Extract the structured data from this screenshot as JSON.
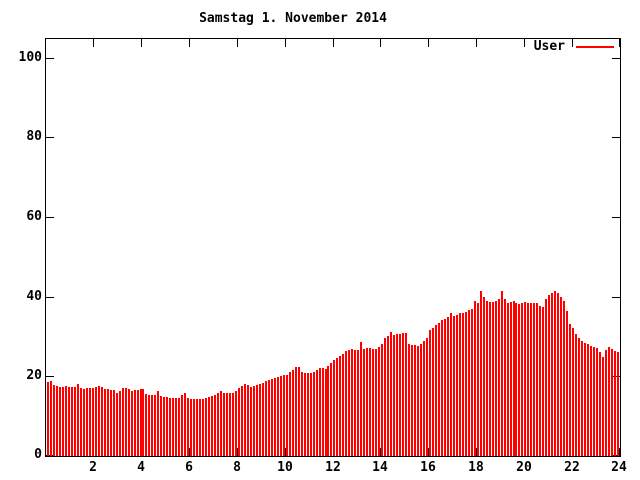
{
  "title": "Samstag 1. November 2014",
  "chart_data": {
    "type": "bar",
    "title": "Samstag 1. November 2014",
    "legend_label": "User",
    "legend_position": "top-right",
    "grid": false,
    "bar_color": "#ff0000",
    "axis_color": "#000000",
    "background_color": "#ffffff",
    "xlim": [
      0,
      24
    ],
    "ylim": [
      0,
      100
    ],
    "x_ticks": [
      2,
      4,
      6,
      8,
      10,
      12,
      14,
      16,
      18,
      20,
      22,
      24
    ],
    "y_ticks": [
      0,
      20,
      40,
      60,
      80,
      100
    ],
    "x_start_hour": 0,
    "x_step_hours": 0.125,
    "series": [
      {
        "name": "User",
        "values": [
          18.5,
          18.7,
          17.8,
          17.5,
          17.3,
          17.4,
          17.5,
          17.3,
          17.2,
          17.4,
          18.1,
          17.0,
          16.9,
          17.0,
          17.1,
          17.0,
          17.3,
          17.5,
          17.2,
          16.9,
          16.8,
          16.6,
          16.5,
          15.9,
          16.2,
          17.0,
          17.1,
          16.8,
          16.4,
          16.5,
          16.6,
          16.7,
          16.8,
          15.6,
          15.4,
          15.2,
          15.3,
          16.3,
          15.0,
          14.8,
          14.7,
          14.5,
          14.5,
          14.6,
          14.6,
          15.3,
          15.9,
          14.5,
          14.3,
          14.2,
          14.2,
          14.3,
          14.4,
          14.5,
          14.7,
          15.0,
          15.3,
          15.8,
          16.2,
          15.9,
          15.7,
          15.8,
          15.9,
          16.4,
          17.0,
          17.6,
          18.1,
          17.7,
          17.4,
          17.5,
          17.7,
          18.0,
          18.3,
          18.7,
          19.0,
          19.2,
          19.5,
          19.8,
          20.1,
          20.3,
          20.3,
          21.0,
          21.6,
          22.3,
          22.4,
          21.2,
          20.8,
          20.8,
          20.9,
          21.0,
          21.5,
          22.1,
          22.0,
          21.8,
          22.5,
          23.3,
          24.0,
          24.5,
          25.0,
          25.6,
          26.3,
          26.6,
          26.8,
          26.7,
          26.6,
          28.5,
          26.9,
          27.0,
          27.1,
          26.9,
          26.8,
          27.4,
          28.0,
          29.5,
          30.2,
          31.0,
          30.4,
          30.5,
          30.6,
          30.8,
          30.8,
          28.2,
          27.9,
          27.8,
          27.6,
          28.2,
          28.9,
          29.6,
          31.5,
          32.2,
          32.8,
          33.4,
          34.2,
          34.5,
          34.8,
          35.8,
          35.2,
          35.5,
          35.8,
          36.0,
          36.2,
          36.6,
          37.0,
          39.0,
          38.5,
          41.3,
          39.8,
          39.0,
          38.6,
          38.7,
          38.9,
          39.5,
          41.5,
          39.5,
          38.4,
          38.6,
          38.8,
          38.5,
          38.2,
          38.4,
          38.6,
          38.4,
          38.3,
          38.4,
          38.5,
          37.6,
          37.4,
          39.5,
          40.5,
          41.0,
          41.5,
          40.8,
          40.0,
          39.0,
          36.5,
          33.0,
          32.0,
          30.5,
          29.5,
          28.8,
          28.3,
          28.0,
          27.7,
          27.4,
          27.2,
          26.0,
          24.8,
          26.5,
          27.3,
          26.8,
          26.3,
          26.0
        ]
      }
    ]
  }
}
